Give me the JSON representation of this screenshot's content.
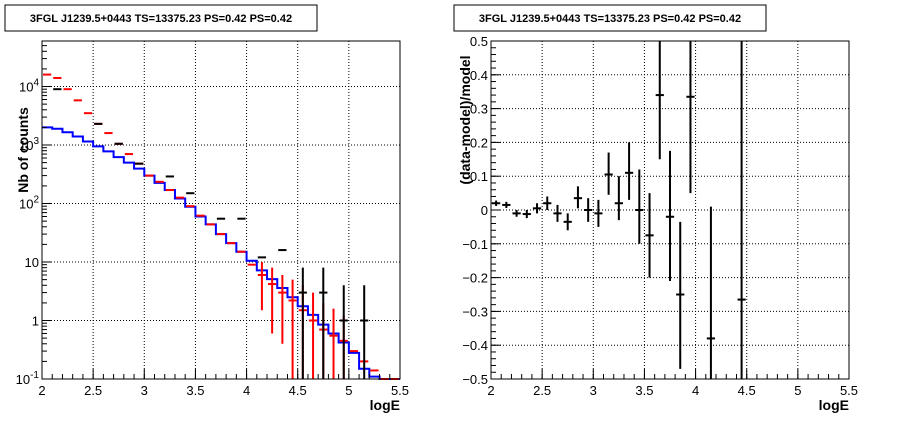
{
  "chart_data": [
    {
      "type": "line",
      "title": "3FGL J1239.5+0443 TS=13375.23 PS=0.42 PS=0.42",
      "xlabel": "logE",
      "ylabel": "Nb of counts",
      "yscale": "log",
      "xlim": [
        2,
        5.5
      ],
      "ylim": [
        0.1,
        60000
      ],
      "grid": true,
      "x_ticks": [
        "2",
        "2.5",
        "3",
        "3.5",
        "4",
        "4.5",
        "5",
        "5.5"
      ],
      "y_ticks": [
        {
          "value": 0.1,
          "base": "10",
          "exp": "-1"
        },
        {
          "value": 1,
          "label": "1"
        },
        {
          "value": 10,
          "label": "10"
        },
        {
          "value": 100,
          "base": "10",
          "exp": "2"
        },
        {
          "value": 1000,
          "base": "10",
          "exp": "3"
        },
        {
          "value": 10000,
          "base": "10",
          "exp": "4"
        }
      ],
      "bin_edges": [
        2.0,
        2.1,
        2.2,
        2.3,
        2.4,
        2.5,
        2.6,
        2.7,
        2.8,
        2.9,
        3.0,
        3.1,
        3.2,
        3.3,
        3.4,
        3.5,
        3.6,
        3.7,
        3.8,
        3.9,
        4.0,
        4.1,
        4.2,
        4.3,
        4.4,
        4.5,
        4.6,
        4.7,
        4.8,
        4.9,
        5.0,
        5.1,
        5.2,
        5.3,
        5.4,
        5.5
      ],
      "series": [
        {
          "color": "#0000ff",
          "style": "step",
          "values": [
            2000,
            1900,
            1650,
            1400,
            1150,
            950,
            780,
            620,
            500,
            395,
            300,
            225,
            170,
            122,
            88,
            60,
            44,
            30,
            21,
            15,
            10.5,
            7.2,
            5.1,
            3.6,
            2.5,
            1.75,
            1.25,
            0.85,
            0.6,
            0.42,
            0.28,
            0.15,
            0.11,
            0.1,
            0.1
          ]
        },
        {
          "color": "#ff0000",
          "style": "points",
          "values": [
            16000,
            14000,
            9000,
            5800,
            3500,
            2300,
            1600,
            1050,
            700,
            480,
            300,
            235,
            170,
            126,
            90,
            62,
            44,
            30,
            21,
            15,
            9,
            6,
            4.2,
            3,
            2.2,
            1.5,
            1,
            0.7,
            0.55,
            0.45,
            0.3,
            0.2,
            0.14,
            0.1,
            0.1
          ],
          "err_low": [
            null,
            null,
            null,
            null,
            null,
            null,
            null,
            null,
            null,
            null,
            null,
            null,
            null,
            null,
            null,
            null,
            null,
            null,
            null,
            null,
            null,
            1.5,
            0.6,
            0.4,
            0.1,
            0.1,
            0.1,
            0.1,
            0.1,
            0.1,
            null,
            null,
            null,
            null,
            null
          ],
          "err_high": [
            null,
            null,
            null,
            null,
            null,
            null,
            null,
            null,
            null,
            null,
            null,
            null,
            null,
            null,
            null,
            null,
            null,
            null,
            null,
            null,
            null,
            10,
            8,
            6,
            5,
            4,
            3,
            2,
            1.6,
            1.2,
            null,
            null,
            null,
            null,
            null
          ]
        },
        {
          "color": "#000000",
          "style": "points",
          "values": [
            null,
            9000,
            null,
            null,
            null,
            2300,
            null,
            1050,
            null,
            480,
            null,
            null,
            290,
            null,
            150,
            null,
            null,
            55,
            null,
            55,
            null,
            12,
            null,
            16,
            null,
            3,
            null,
            3,
            null,
            1,
            null,
            1,
            null,
            null,
            null
          ],
          "err_low": [
            null,
            null,
            null,
            null,
            null,
            null,
            null,
            null,
            null,
            null,
            null,
            null,
            null,
            null,
            null,
            null,
            null,
            null,
            null,
            null,
            null,
            null,
            null,
            null,
            null,
            0.1,
            null,
            0.1,
            null,
            0.1,
            null,
            0.1,
            null,
            null,
            null
          ],
          "err_high": [
            null,
            null,
            null,
            null,
            null,
            null,
            null,
            null,
            null,
            null,
            null,
            null,
            null,
            null,
            null,
            null,
            null,
            null,
            null,
            null,
            null,
            null,
            null,
            null,
            null,
            8,
            null,
            8,
            null,
            4,
            null,
            4,
            null,
            null,
            null
          ]
        }
      ]
    },
    {
      "type": "scatter",
      "title": "3FGL J1239.5+0443 TS=13375.23 PS=0.42 PS=0.42",
      "xlabel": "logE",
      "ylabel": "(data-model)/model",
      "xlim": [
        2,
        5.5
      ],
      "ylim": [
        -0.5,
        0.5
      ],
      "grid": true,
      "x_ticks": [
        "2",
        "2.5",
        "3",
        "3.5",
        "4",
        "4.5",
        "5",
        "5.5"
      ],
      "y_ticks": [
        "−0.5",
        "−0.4",
        "−0.3",
        "−0.2",
        "−0.1",
        "0",
        "0.1",
        "0.2",
        "0.3",
        "0.4",
        "0.5"
      ],
      "points": [
        {
          "x": 2.05,
          "y": 0.02,
          "ylo": 0.012,
          "yhi": 0.028
        },
        {
          "x": 2.15,
          "y": 0.015,
          "ylo": 0.006,
          "yhi": 0.024
        },
        {
          "x": 2.25,
          "y": -0.01,
          "ylo": -0.02,
          "yhi": 0.0
        },
        {
          "x": 2.35,
          "y": -0.012,
          "ylo": -0.024,
          "yhi": 0.0
        },
        {
          "x": 2.45,
          "y": 0.005,
          "ylo": -0.01,
          "yhi": 0.02
        },
        {
          "x": 2.55,
          "y": 0.02,
          "ylo": 0.0,
          "yhi": 0.04
        },
        {
          "x": 2.65,
          "y": -0.01,
          "ylo": -0.035,
          "yhi": 0.015
        },
        {
          "x": 2.75,
          "y": -0.035,
          "ylo": -0.06,
          "yhi": -0.01
        },
        {
          "x": 2.85,
          "y": 0.035,
          "ylo": 0.005,
          "yhi": 0.07
        },
        {
          "x": 2.95,
          "y": 0.0,
          "ylo": -0.035,
          "yhi": 0.035
        },
        {
          "x": 3.05,
          "y": -0.01,
          "ylo": -0.05,
          "yhi": 0.03
        },
        {
          "x": 3.15,
          "y": 0.105,
          "ylo": 0.045,
          "yhi": 0.17
        },
        {
          "x": 3.25,
          "y": 0.02,
          "ylo": -0.03,
          "yhi": 0.1
        },
        {
          "x": 3.35,
          "y": 0.11,
          "ylo": 0.03,
          "yhi": 0.2
        },
        {
          "x": 3.45,
          "y": 0.0,
          "ylo": -0.1,
          "yhi": 0.12
        },
        {
          "x": 3.55,
          "y": -0.075,
          "ylo": -0.2,
          "yhi": 0.05
        },
        {
          "x": 3.65,
          "y": 0.34,
          "ylo": 0.15,
          "yhi": 0.5
        },
        {
          "x": 3.75,
          "y": -0.02,
          "ylo": -0.21,
          "yhi": 0.175
        },
        {
          "x": 3.85,
          "y": -0.25,
          "ylo": -0.47,
          "yhi": -0.035
        },
        {
          "x": 3.95,
          "y": 0.335,
          "ylo": 0.05,
          "yhi": 0.5
        },
        {
          "x": 4.15,
          "y": -0.38,
          "ylo": -0.5,
          "yhi": 0.01
        },
        {
          "x": 4.45,
          "y": -0.265,
          "ylo": -0.5,
          "yhi": 0.5
        }
      ]
    }
  ]
}
